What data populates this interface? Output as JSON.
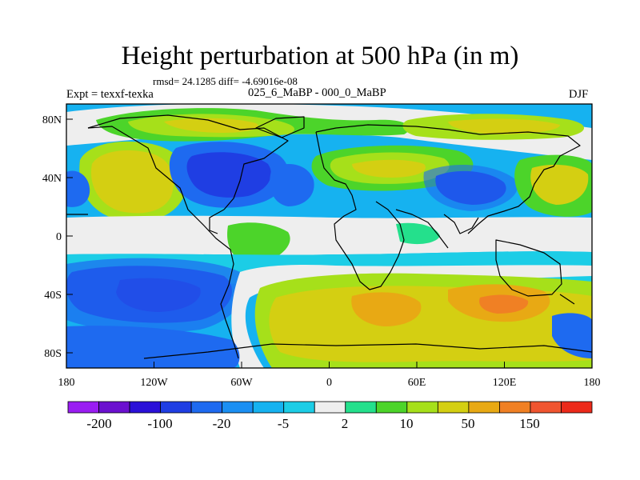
{
  "title": "Height perturbation at 500 hPa (in m)",
  "stats_line": "rmsd= 24.1285 diff= -4.69016e-08",
  "left_label": "Expt = texxf-texka",
  "center_label": "025_6_MaBP - 000_0_MaBP",
  "right_label": "DJF",
  "x_ticks": [
    "180",
    "120W",
    "60W",
    "0",
    "60E",
    "120E",
    "180"
  ],
  "y_ticks": [
    "80N",
    "40N",
    "0",
    "40S",
    "80S"
  ],
  "colorbar": {
    "colors": [
      "#9a1df2",
      "#6b10cf",
      "#2a10d8",
      "#1f3ee3",
      "#1e6af0",
      "#1b8ff3",
      "#16b2f0",
      "#1ccde6",
      "#eeeeee",
      "#24e08c",
      "#4cd42a",
      "#a6e01a",
      "#d4cf12",
      "#e8a914",
      "#f08024",
      "#f05530",
      "#ec2a1a"
    ],
    "labels": [
      "-200",
      "-100",
      "-20",
      "-5",
      "2",
      "10",
      "50",
      "150"
    ]
  }
}
